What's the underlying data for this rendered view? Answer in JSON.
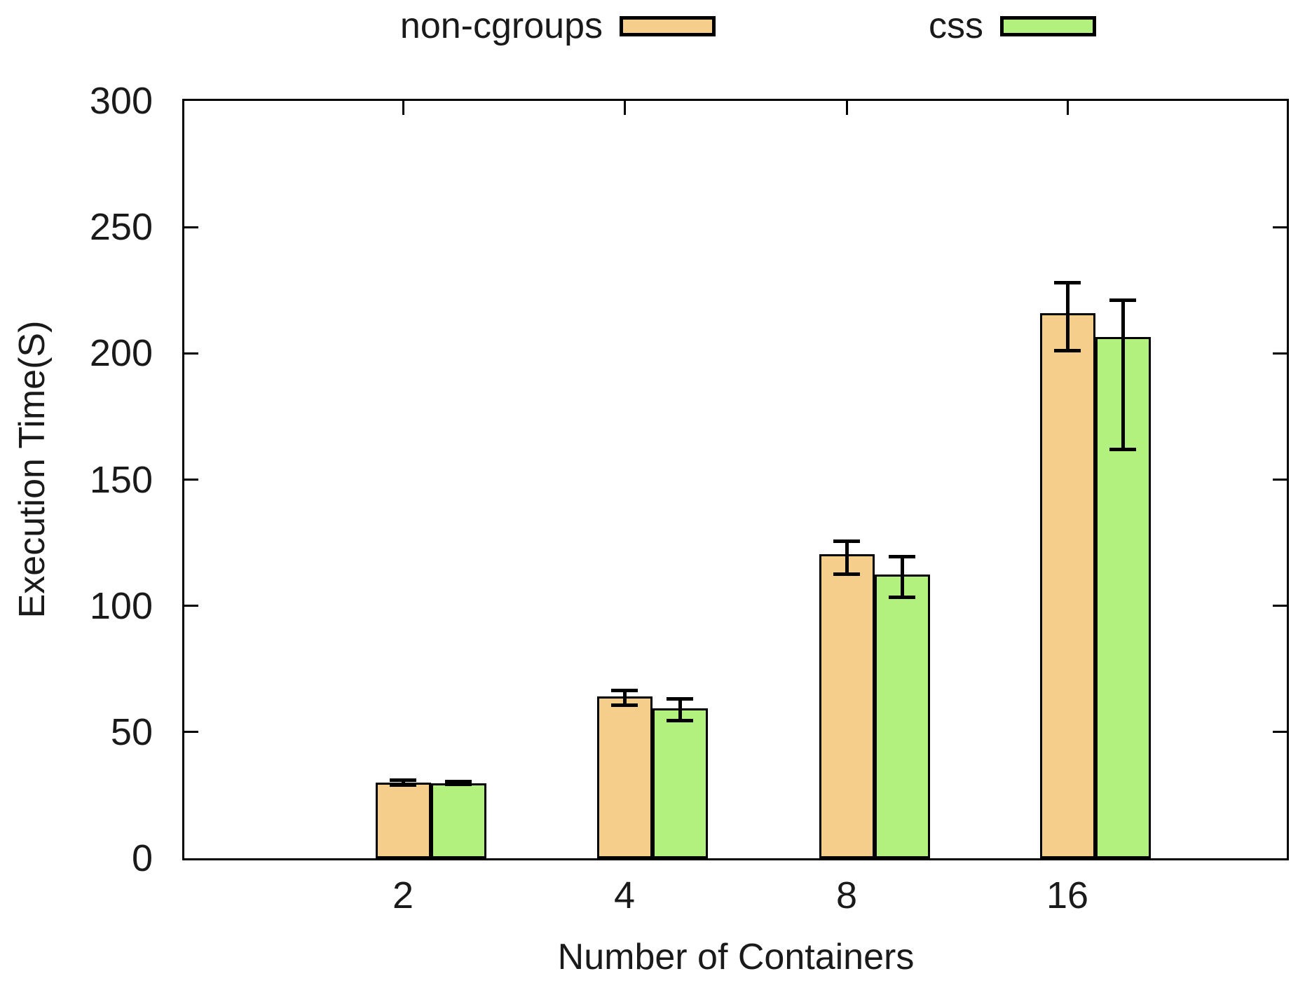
{
  "chart_data": {
    "type": "bar",
    "title": "",
    "xlabel": "Number of Containers",
    "ylabel": "Execution Time(S)",
    "categories": [
      "2",
      "4",
      "8",
      "16"
    ],
    "series": [
      {
        "name": "non-cgroups",
        "color": "#F6CE8C",
        "values": [
          30,
          64,
          120.5,
          216
        ],
        "error_low": [
          29,
          60.5,
          112.5,
          201
        ],
        "error_high": [
          31,
          66.5,
          125.5,
          228
        ]
      },
      {
        "name": "css",
        "color": "#B3F17E",
        "values": [
          29.8,
          59.5,
          112.5,
          206.5
        ],
        "error_low": [
          29.3,
          54.5,
          103.5,
          162
        ],
        "error_high": [
          30.3,
          63,
          119.5,
          221
        ]
      }
    ],
    "ylim": [
      0,
      300
    ],
    "yticks": [
      0,
      50,
      100,
      150,
      200,
      250,
      300
    ],
    "grid": false,
    "legend_position": "top",
    "error_bars": true
  },
  "colors": {
    "axis": "#000000",
    "bar_border": "#000000",
    "error_bar": "#000000",
    "background": "#ffffff"
  }
}
